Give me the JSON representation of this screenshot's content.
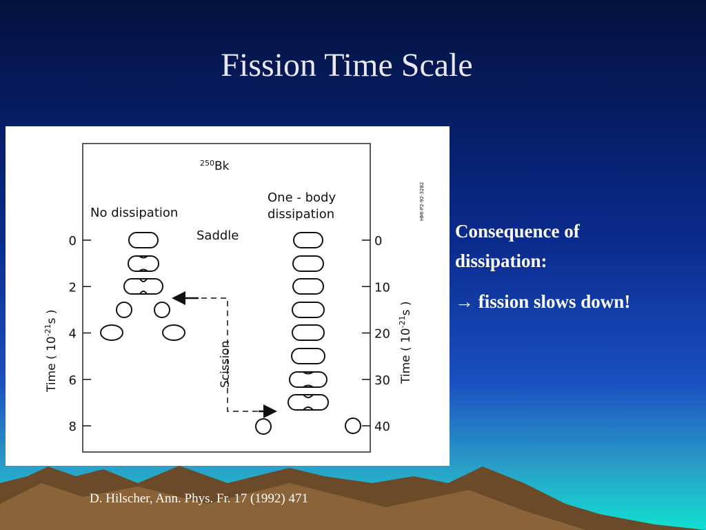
{
  "title": "Fission Time Scale",
  "figure": {
    "nucleus_mass": "250",
    "nucleus_symbol": "Bk",
    "left_label": "No dissipation",
    "right_label_line1": "One - body",
    "right_label_line2": "dissipation",
    "saddle": "Saddle",
    "scission": "Scission",
    "code": "HMI-P2-92-3282",
    "axis_label_left": {
      "pre": "Time  ( 10",
      "exp": "-21",
      "post": "s )"
    },
    "axis_label_right": {
      "pre": "Time  ( 10",
      "exp": "-21",
      "post": "s )"
    },
    "left_ticks": [
      0,
      2,
      4,
      6,
      8
    ],
    "right_ticks": [
      0,
      10,
      20,
      30,
      40
    ]
  },
  "text": {
    "line1": "Consequence of",
    "line2": "dissipation:",
    "line3": "→ fission slows down!"
  },
  "citation": "D. Hilscher, Ann. Phys. Fr. 17 (1992) 471"
}
